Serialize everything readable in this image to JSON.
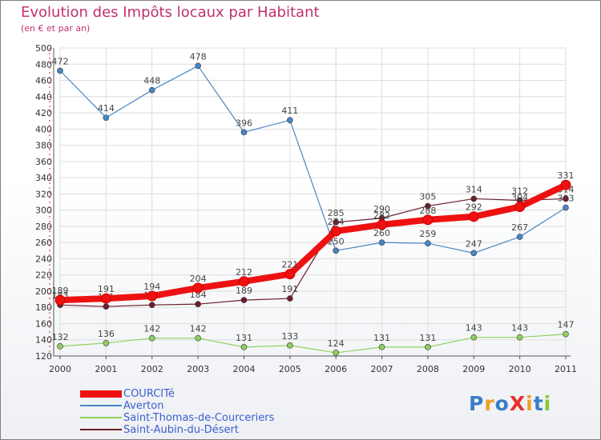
{
  "title": "Evolution des Impôts locaux par Habitant",
  "subtitle": "(en € et par an)",
  "logo": {
    "text": "ProXiti",
    "letters": [
      {
        "ch": "P",
        "color": "#3a7dc9"
      },
      {
        "ch": "r",
        "color": "#f0a020"
      },
      {
        "ch": "o",
        "color": "#3a7dc9"
      },
      {
        "ch": "X",
        "color": "#e8302a"
      },
      {
        "ch": "i",
        "color": "#f0a020"
      },
      {
        "ch": "t",
        "color": "#3a7dc9"
      },
      {
        "ch": "i",
        "color": "#8ac926"
      }
    ]
  },
  "chart_data": {
    "type": "line",
    "title": "Evolution des Impôts locaux par Habitant",
    "subtitle": "(en € et par an)",
    "xlabel": "",
    "ylabel": "",
    "categories": [
      "2000",
      "2001",
      "2002",
      "2003",
      "2004",
      "2005",
      "2006",
      "2007",
      "2008",
      "2009",
      "2010",
      "2011"
    ],
    "ylim": [
      120,
      500
    ],
    "yticks": [
      120,
      140,
      160,
      180,
      200,
      220,
      240,
      260,
      280,
      300,
      320,
      340,
      360,
      380,
      400,
      420,
      440,
      460,
      480,
      500
    ],
    "grid": true,
    "legend_position": "bottom-left",
    "series": [
      {
        "name": "Saint-Thomas-de-Courceriers",
        "color": "#8fd160",
        "values": [
          132,
          136,
          142,
          142,
          131,
          133,
          124,
          131,
          131,
          143,
          143,
          147
        ],
        "labels": [
          "132",
          "136",
          "142",
          "142",
          "131",
          "133",
          "124",
          "131",
          "131",
          "143",
          "143",
          "147"
        ]
      },
      {
        "name": "Averton",
        "color": "#4a86c6",
        "values": [
          472,
          414,
          448,
          478,
          396,
          411,
          250,
          260,
          259,
          247,
          267,
          303
        ],
        "labels": [
          "472",
          "414",
          "448",
          "478",
          "396",
          "411",
          "250",
          "260",
          "259",
          "247",
          "267",
          "303"
        ]
      },
      {
        "name": "Saint-Aubin-du-Désert",
        "color": "#6b1f2a",
        "values": [
          183,
          181,
          183,
          184,
          189,
          191,
          285,
          290,
          305,
          314,
          312,
          314
        ],
        "labels": [
          "183",
          "181",
          "183",
          "184",
          "189",
          "191",
          "285",
          "290",
          "305",
          "314",
          "312",
          "314"
        ]
      },
      {
        "name": "COURCITé",
        "color": "#ee1111",
        "values": [
          189,
          191,
          194,
          204,
          212,
          221,
          274,
          282,
          288,
          292,
          304,
          331
        ],
        "labels": [
          "189",
          "191",
          "194",
          "204",
          "212",
          "221",
          "274",
          "282",
          "288",
          "292",
          "304",
          "331"
        ]
      }
    ]
  },
  "legend": [
    {
      "label": "COURCITé",
      "color": "#ee1111"
    },
    {
      "label": "Averton",
      "color": "#4a86c6"
    },
    {
      "label": "Saint-Thomas-de-Courceriers",
      "color": "#8fd160"
    },
    {
      "label": "Saint-Aubin-du-Désert",
      "color": "#6b1f2a"
    }
  ]
}
